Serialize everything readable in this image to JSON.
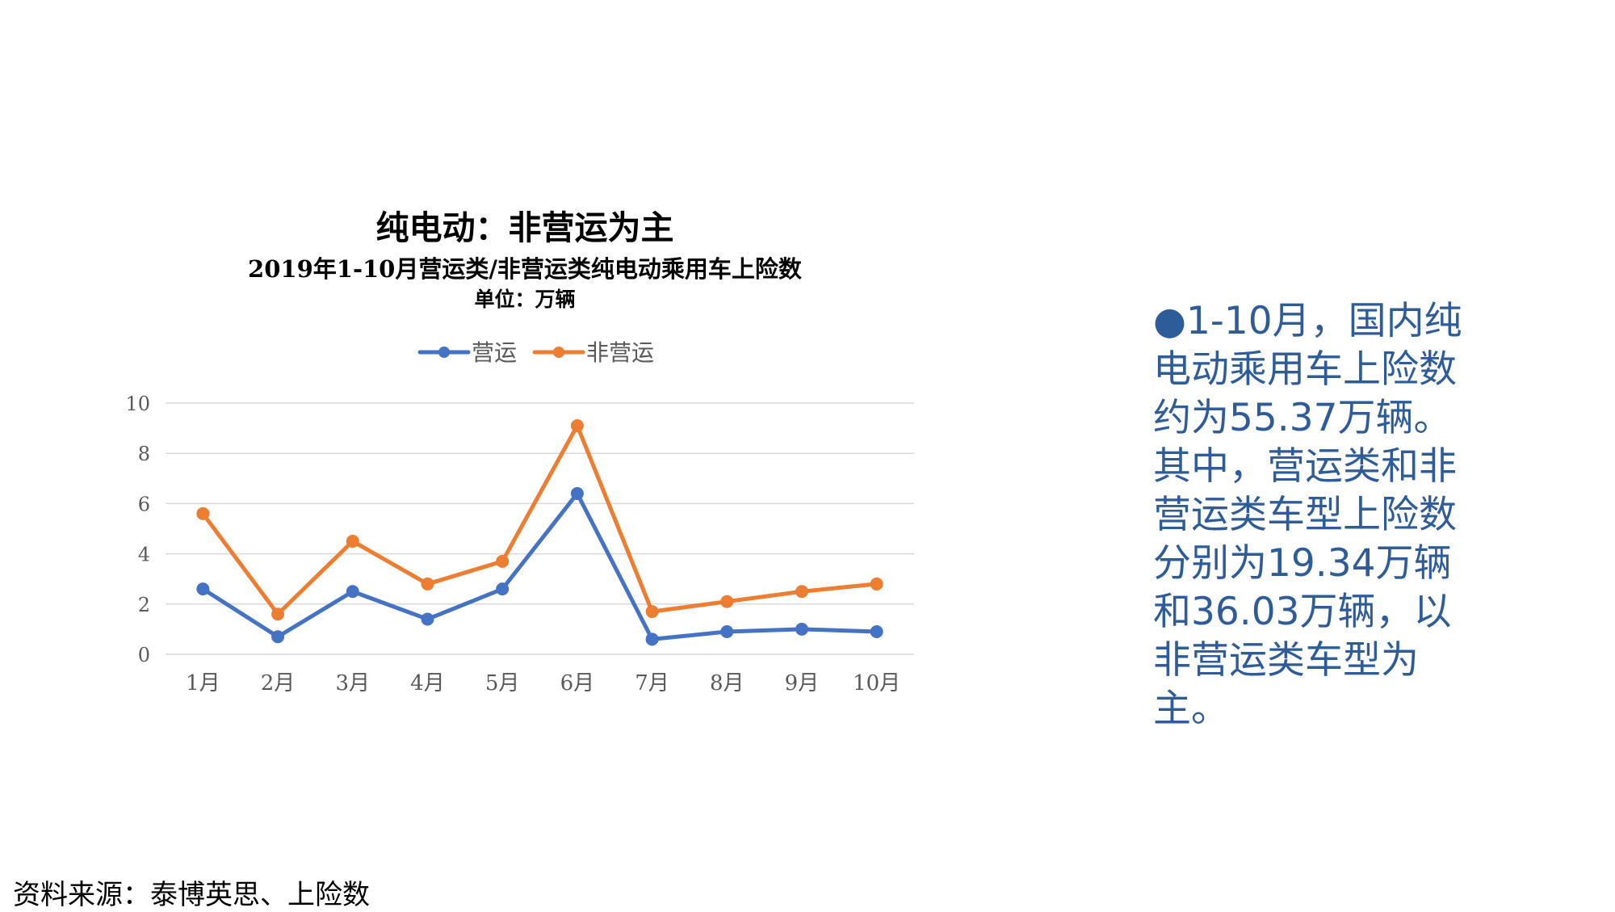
{
  "chart_data": {
    "type": "line",
    "title": "纯电动：非营运为主",
    "subtitle": "2019年1-10月营运类/非营运类纯电动乘用车上险数",
    "unit": "单位：万辆",
    "categories": [
      "1月",
      "2月",
      "3月",
      "4月",
      "5月",
      "6月",
      "7月",
      "8月",
      "9月",
      "10月"
    ],
    "series": [
      {
        "name": "营运",
        "color": "#4472C4",
        "values": [
          2.6,
          0.7,
          2.5,
          1.4,
          2.6,
          6.4,
          0.6,
          0.9,
          1.0,
          0.9
        ]
      },
      {
        "name": "非营运",
        "color": "#ED7D31",
        "values": [
          5.6,
          1.6,
          4.5,
          2.8,
          3.7,
          9.1,
          1.7,
          2.1,
          2.5,
          2.8
        ]
      }
    ],
    "ylim": [
      0,
      10
    ],
    "yticks": [
      "0",
      "2",
      "4",
      "6",
      "8",
      "10"
    ],
    "grid": true,
    "legend": "top"
  },
  "side_text": "●1-10月，国内纯\n电动乘用车上险数\n约为55.37万辆。\n其中，营运类和非\n营运类车型上险数\n分别为19.34万辆\n和36.03万辆，以\n非营运类车型为\n主。",
  "source": "资料来源：泰博英思、上险数"
}
